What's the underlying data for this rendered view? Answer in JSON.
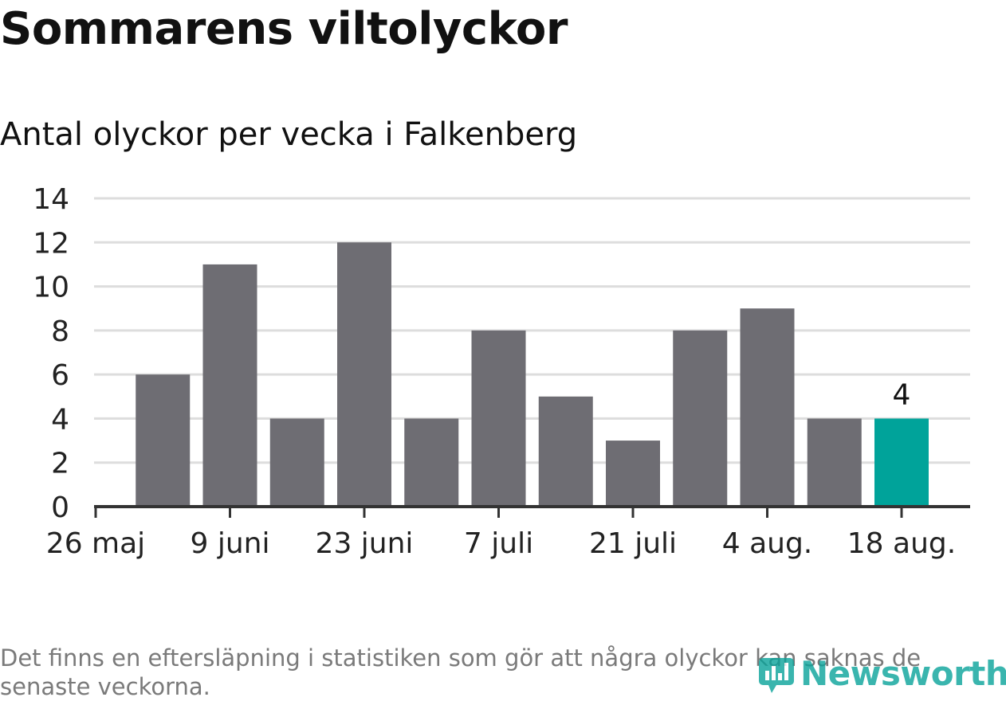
{
  "header": {
    "title": "Sommarens viltolyckor",
    "subtitle": "Antal olyckor per vecka i Falkenberg"
  },
  "chart_data": {
    "type": "bar",
    "title": "Sommarens viltolyckor",
    "subtitle": "Antal olyckor per vecka i Falkenberg",
    "x_tick_labels": [
      "26 maj",
      "9 juni",
      "23 juni",
      "7 juli",
      "21 juli",
      "4 aug.",
      "18 aug."
    ],
    "y_ticks": [
      0,
      2,
      4,
      6,
      8,
      10,
      12,
      14
    ],
    "ylim": [
      0,
      14
    ],
    "values": [
      6,
      11,
      4,
      12,
      4,
      8,
      5,
      3,
      8,
      9,
      4,
      4
    ],
    "highlight_index": 11,
    "highlight_label": "4",
    "grid": true,
    "colors": {
      "bar": "#6e6d73",
      "highlight": "#00a39a",
      "grid": "#dddddd",
      "axis": "#333333"
    }
  },
  "footer": {
    "note": "Det finns en eftersläpning i statistiken som gör att några olyckor kan saknas de senaste veckorna.",
    "brand": "Newsworthy"
  }
}
